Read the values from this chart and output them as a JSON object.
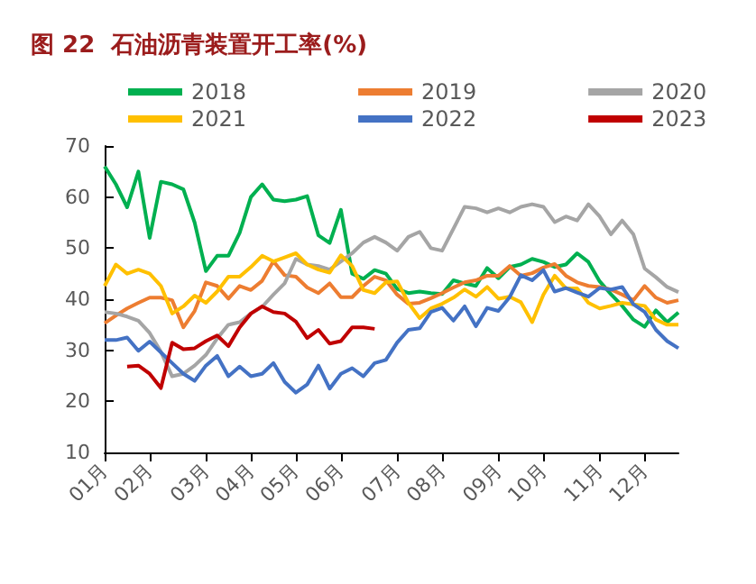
{
  "chart_data": {
    "type": "line",
    "title": "图 22  石油沥青装置开工率(%)",
    "categories": [
      "01月",
      null,
      null,
      null,
      "02月",
      null,
      null,
      null,
      null,
      "03月",
      null,
      null,
      null,
      "04月",
      null,
      null,
      null,
      "05月",
      null,
      null,
      null,
      "06月",
      null,
      null,
      null,
      null,
      "07月",
      null,
      null,
      null,
      "08月",
      null,
      null,
      null,
      null,
      "09月",
      null,
      null,
      null,
      "10月",
      null,
      null,
      null,
      null,
      "11月",
      null,
      null,
      null,
      "12月",
      null,
      null,
      null
    ],
    "series": [
      {
        "name": "2018",
        "color": "#00b050",
        "values": [
          66,
          62.5,
          58,
          65,
          52,
          63,
          62.5,
          61.5,
          55,
          45.5,
          48.5,
          48.5,
          53,
          60,
          62.5,
          59.5,
          59.2,
          59.5,
          60.2,
          52.5,
          51,
          57.5,
          45,
          44,
          45.7,
          45,
          42,
          41.2,
          41.5,
          41.2,
          41,
          43.7,
          43.1,
          42.6,
          46.1,
          44.1,
          46.3,
          46.8,
          47.9,
          47.3,
          46.3,
          46.8,
          49,
          47.3,
          43.5,
          41,
          38.7,
          36,
          34.6,
          37.8,
          35.5,
          37.4
        ]
      },
      {
        "name": "2019",
        "color": "#ed7d31",
        "values": [
          35.3,
          36.8,
          38.2,
          39.3,
          40.3,
          40.3,
          39.8,
          34.5,
          37.7,
          43.3,
          42.6,
          40.1,
          42.6,
          41.8,
          43.6,
          47.4,
          44.7,
          44.4,
          42.3,
          41.2,
          43.1,
          40.4,
          40.4,
          42.6,
          44.4,
          43.7,
          40.9,
          39.1,
          39.3,
          40.2,
          41.2,
          42.3,
          43.3,
          43.7,
          44.6,
          44.6,
          46.5,
          44.6,
          45.1,
          46.2,
          46.9,
          44.6,
          43.3,
          42.6,
          42.4,
          41.9,
          40.9,
          39.8,
          42.6,
          40.3,
          39.3,
          39.8
        ]
      },
      {
        "name": "2020",
        "color": "#a5a5a5",
        "values": [
          37.5,
          37.2,
          36.6,
          35.8,
          33.4,
          29.7,
          24.9,
          25.4,
          27,
          29.1,
          32.3,
          35,
          35.5,
          37.2,
          38.5,
          40.9,
          43.1,
          47.9,
          46.8,
          46.5,
          45.8,
          47.4,
          49,
          51.1,
          52.2,
          51.1,
          49.5,
          52.2,
          53.2,
          50,
          49.5,
          53.8,
          58.1,
          57.8,
          57,
          57.8,
          57,
          58.1,
          58.6,
          58.1,
          55.1,
          56.2,
          55.4,
          58.6,
          56.2,
          52.7,
          55.4,
          52.7,
          46,
          44.3,
          42.4,
          41.4
        ]
      },
      {
        "name": "2021",
        "color": "#ffc000",
        "values": [
          42.6,
          46.8,
          45,
          45.8,
          45,
          42.6,
          37.2,
          38.6,
          40.7,
          39.3,
          41.5,
          44.4,
          44.4,
          46.3,
          48.5,
          47.4,
          48.2,
          49,
          46.8,
          45.8,
          45.2,
          48.6,
          46.5,
          41.8,
          41.2,
          43.3,
          43.5,
          39.3,
          36.3,
          38.2,
          39.1,
          40.3,
          41.9,
          40.5,
          42.4,
          40.1,
          40.5,
          39.4,
          35.5,
          40.9,
          44.6,
          42.1,
          42.1,
          39.3,
          38.2,
          38.7,
          39.3,
          39,
          38.7,
          36,
          35,
          35
        ]
      },
      {
        "name": "2022",
        "color": "#4472c4",
        "values": [
          32,
          32,
          32.5,
          29.9,
          31.7,
          29.6,
          27.5,
          25.4,
          24,
          27,
          28.9,
          24.9,
          26.8,
          24.9,
          25.4,
          27.5,
          23.8,
          21.7,
          23.3,
          27,
          22.5,
          25.4,
          26.5,
          24.9,
          27.5,
          28.1,
          31.5,
          34,
          34.3,
          37.5,
          38.3,
          35.8,
          38.6,
          34.7,
          38.3,
          37.7,
          40.4,
          44.7,
          43.7,
          45.7,
          41.5,
          42.2,
          41.3,
          40.5,
          42.2,
          41.9,
          42.4,
          39,
          37.5,
          34,
          31.8,
          30.4
        ]
      },
      {
        "name": "2023",
        "color": "#c00000",
        "values": [
          null,
          null,
          26.8,
          27,
          25.4,
          22.6,
          31.5,
          30.2,
          30.4,
          31.8,
          32.9,
          30.8,
          34.5,
          37.2,
          38.6,
          37.5,
          37.2,
          35.6,
          32.4,
          34,
          31.3,
          31.8,
          34.5,
          34.5,
          34.2,
          null,
          null,
          null,
          null,
          null,
          null,
          null,
          null,
          null,
          null,
          null,
          null,
          null,
          null,
          null,
          null,
          null,
          null,
          null,
          null,
          null,
          null,
          null,
          null,
          null,
          null,
          null
        ]
      }
    ],
    "ylim": [
      10,
      70
    ],
    "yticks": [
      10,
      20,
      30,
      40,
      50,
      60,
      70
    ],
    "grid": false,
    "legend": "top",
    "marker": "none",
    "line_style": "solid"
  }
}
